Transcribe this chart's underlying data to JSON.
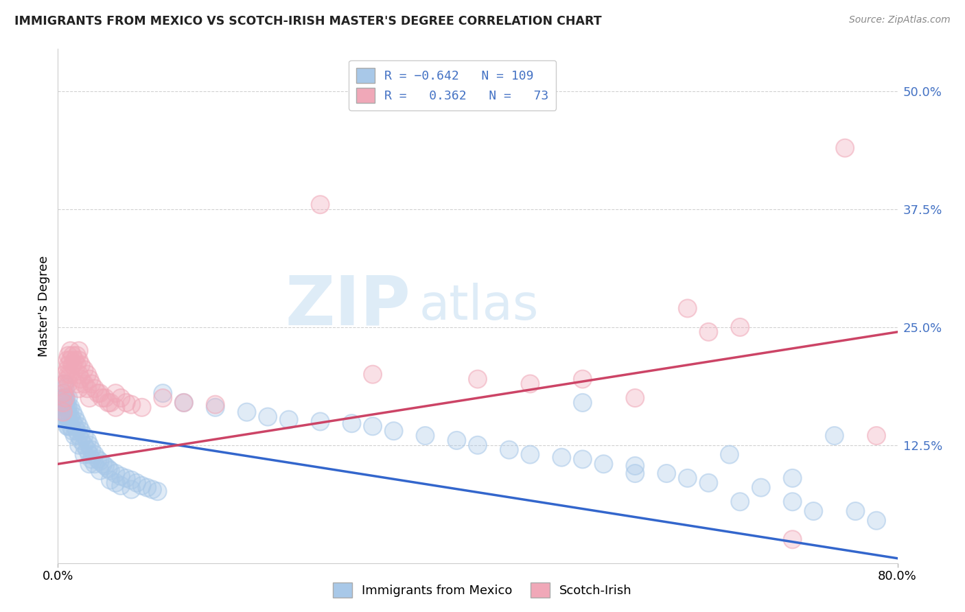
{
  "title": "IMMIGRANTS FROM MEXICO VS SCOTCH-IRISH MASTER'S DEGREE CORRELATION CHART",
  "source": "Source: ZipAtlas.com",
  "ylabel": "Master's Degree",
  "ytick_vals": [
    0.5,
    0.375,
    0.25,
    0.125
  ],
  "ytick_labels": [
    "50.0%",
    "37.5%",
    "25.0%",
    "12.5%"
  ],
  "xlim": [
    0.0,
    0.8
  ],
  "ylim": [
    0.0,
    0.545
  ],
  "blue_color": "#a8c8e8",
  "pink_color": "#f0a8b8",
  "line_blue": "#3366cc",
  "line_pink": "#cc4466",
  "watermark_zip": "ZIP",
  "watermark_atlas": "atlas",
  "blue_scatter": [
    [
      0.005,
      0.175
    ],
    [
      0.005,
      0.165
    ],
    [
      0.005,
      0.16
    ],
    [
      0.005,
      0.155
    ],
    [
      0.006,
      0.19
    ],
    [
      0.006,
      0.18
    ],
    [
      0.006,
      0.175
    ],
    [
      0.006,
      0.165
    ],
    [
      0.007,
      0.185
    ],
    [
      0.007,
      0.175
    ],
    [
      0.007,
      0.165
    ],
    [
      0.007,
      0.16
    ],
    [
      0.008,
      0.175
    ],
    [
      0.008,
      0.165
    ],
    [
      0.008,
      0.155
    ],
    [
      0.009,
      0.165
    ],
    [
      0.009,
      0.155
    ],
    [
      0.009,
      0.145
    ],
    [
      0.01,
      0.175
    ],
    [
      0.01,
      0.165
    ],
    [
      0.01,
      0.155
    ],
    [
      0.01,
      0.145
    ],
    [
      0.012,
      0.165
    ],
    [
      0.012,
      0.155
    ],
    [
      0.012,
      0.145
    ],
    [
      0.014,
      0.16
    ],
    [
      0.014,
      0.15
    ],
    [
      0.014,
      0.14
    ],
    [
      0.016,
      0.155
    ],
    [
      0.016,
      0.145
    ],
    [
      0.016,
      0.135
    ],
    [
      0.018,
      0.15
    ],
    [
      0.018,
      0.14
    ],
    [
      0.02,
      0.145
    ],
    [
      0.02,
      0.135
    ],
    [
      0.02,
      0.125
    ],
    [
      0.022,
      0.14
    ],
    [
      0.022,
      0.13
    ],
    [
      0.025,
      0.135
    ],
    [
      0.025,
      0.125
    ],
    [
      0.025,
      0.115
    ],
    [
      0.028,
      0.13
    ],
    [
      0.028,
      0.12
    ],
    [
      0.03,
      0.125
    ],
    [
      0.03,
      0.115
    ],
    [
      0.03,
      0.105
    ],
    [
      0.032,
      0.12
    ],
    [
      0.032,
      0.11
    ],
    [
      0.035,
      0.115
    ],
    [
      0.035,
      0.105
    ],
    [
      0.038,
      0.11
    ],
    [
      0.04,
      0.108
    ],
    [
      0.04,
      0.098
    ],
    [
      0.043,
      0.105
    ],
    [
      0.045,
      0.103
    ],
    [
      0.048,
      0.1
    ],
    [
      0.05,
      0.098
    ],
    [
      0.05,
      0.088
    ],
    [
      0.055,
      0.095
    ],
    [
      0.055,
      0.085
    ],
    [
      0.06,
      0.092
    ],
    [
      0.06,
      0.082
    ],
    [
      0.065,
      0.09
    ],
    [
      0.07,
      0.088
    ],
    [
      0.07,
      0.078
    ],
    [
      0.075,
      0.085
    ],
    [
      0.08,
      0.082
    ],
    [
      0.085,
      0.08
    ],
    [
      0.09,
      0.078
    ],
    [
      0.095,
      0.076
    ],
    [
      0.1,
      0.18
    ],
    [
      0.12,
      0.17
    ],
    [
      0.15,
      0.165
    ],
    [
      0.18,
      0.16
    ],
    [
      0.2,
      0.155
    ],
    [
      0.22,
      0.152
    ],
    [
      0.25,
      0.15
    ],
    [
      0.28,
      0.148
    ],
    [
      0.3,
      0.145
    ],
    [
      0.32,
      0.14
    ],
    [
      0.35,
      0.135
    ],
    [
      0.38,
      0.13
    ],
    [
      0.4,
      0.125
    ],
    [
      0.43,
      0.12
    ],
    [
      0.45,
      0.115
    ],
    [
      0.48,
      0.112
    ],
    [
      0.5,
      0.17
    ],
    [
      0.5,
      0.11
    ],
    [
      0.52,
      0.105
    ],
    [
      0.55,
      0.103
    ],
    [
      0.55,
      0.095
    ],
    [
      0.58,
      0.095
    ],
    [
      0.6,
      0.09
    ],
    [
      0.62,
      0.085
    ],
    [
      0.64,
      0.115
    ],
    [
      0.65,
      0.065
    ],
    [
      0.67,
      0.08
    ],
    [
      0.7,
      0.09
    ],
    [
      0.7,
      0.065
    ],
    [
      0.72,
      0.055
    ],
    [
      0.74,
      0.135
    ],
    [
      0.76,
      0.055
    ],
    [
      0.78,
      0.045
    ]
  ],
  "pink_scatter": [
    [
      0.005,
      0.18
    ],
    [
      0.005,
      0.17
    ],
    [
      0.005,
      0.16
    ],
    [
      0.007,
      0.2
    ],
    [
      0.007,
      0.19
    ],
    [
      0.007,
      0.175
    ],
    [
      0.009,
      0.215
    ],
    [
      0.009,
      0.205
    ],
    [
      0.009,
      0.195
    ],
    [
      0.01,
      0.22
    ],
    [
      0.01,
      0.21
    ],
    [
      0.01,
      0.2
    ],
    [
      0.01,
      0.19
    ],
    [
      0.012,
      0.225
    ],
    [
      0.012,
      0.215
    ],
    [
      0.012,
      0.2
    ],
    [
      0.014,
      0.22
    ],
    [
      0.014,
      0.21
    ],
    [
      0.016,
      0.215
    ],
    [
      0.018,
      0.22
    ],
    [
      0.018,
      0.21
    ],
    [
      0.018,
      0.19
    ],
    [
      0.02,
      0.225
    ],
    [
      0.02,
      0.215
    ],
    [
      0.02,
      0.2
    ],
    [
      0.02,
      0.185
    ],
    [
      0.022,
      0.21
    ],
    [
      0.022,
      0.195
    ],
    [
      0.025,
      0.205
    ],
    [
      0.025,
      0.19
    ],
    [
      0.028,
      0.2
    ],
    [
      0.028,
      0.185
    ],
    [
      0.03,
      0.195
    ],
    [
      0.03,
      0.175
    ],
    [
      0.032,
      0.19
    ],
    [
      0.035,
      0.185
    ],
    [
      0.038,
      0.18
    ],
    [
      0.04,
      0.18
    ],
    [
      0.042,
      0.175
    ],
    [
      0.045,
      0.175
    ],
    [
      0.048,
      0.17
    ],
    [
      0.05,
      0.17
    ],
    [
      0.055,
      0.18
    ],
    [
      0.055,
      0.165
    ],
    [
      0.06,
      0.175
    ],
    [
      0.065,
      0.17
    ],
    [
      0.07,
      0.168
    ],
    [
      0.08,
      0.165
    ],
    [
      0.1,
      0.175
    ],
    [
      0.12,
      0.17
    ],
    [
      0.15,
      0.168
    ],
    [
      0.25,
      0.38
    ],
    [
      0.3,
      0.2
    ],
    [
      0.4,
      0.195
    ],
    [
      0.45,
      0.19
    ],
    [
      0.5,
      0.195
    ],
    [
      0.55,
      0.175
    ],
    [
      0.6,
      0.27
    ],
    [
      0.62,
      0.245
    ],
    [
      0.65,
      0.25
    ],
    [
      0.7,
      0.025
    ],
    [
      0.75,
      0.44
    ],
    [
      0.78,
      0.135
    ]
  ],
  "blue_line": [
    0.0,
    0.145,
    0.8,
    0.005
  ],
  "pink_line": [
    0.0,
    0.105,
    0.8,
    0.245
  ]
}
